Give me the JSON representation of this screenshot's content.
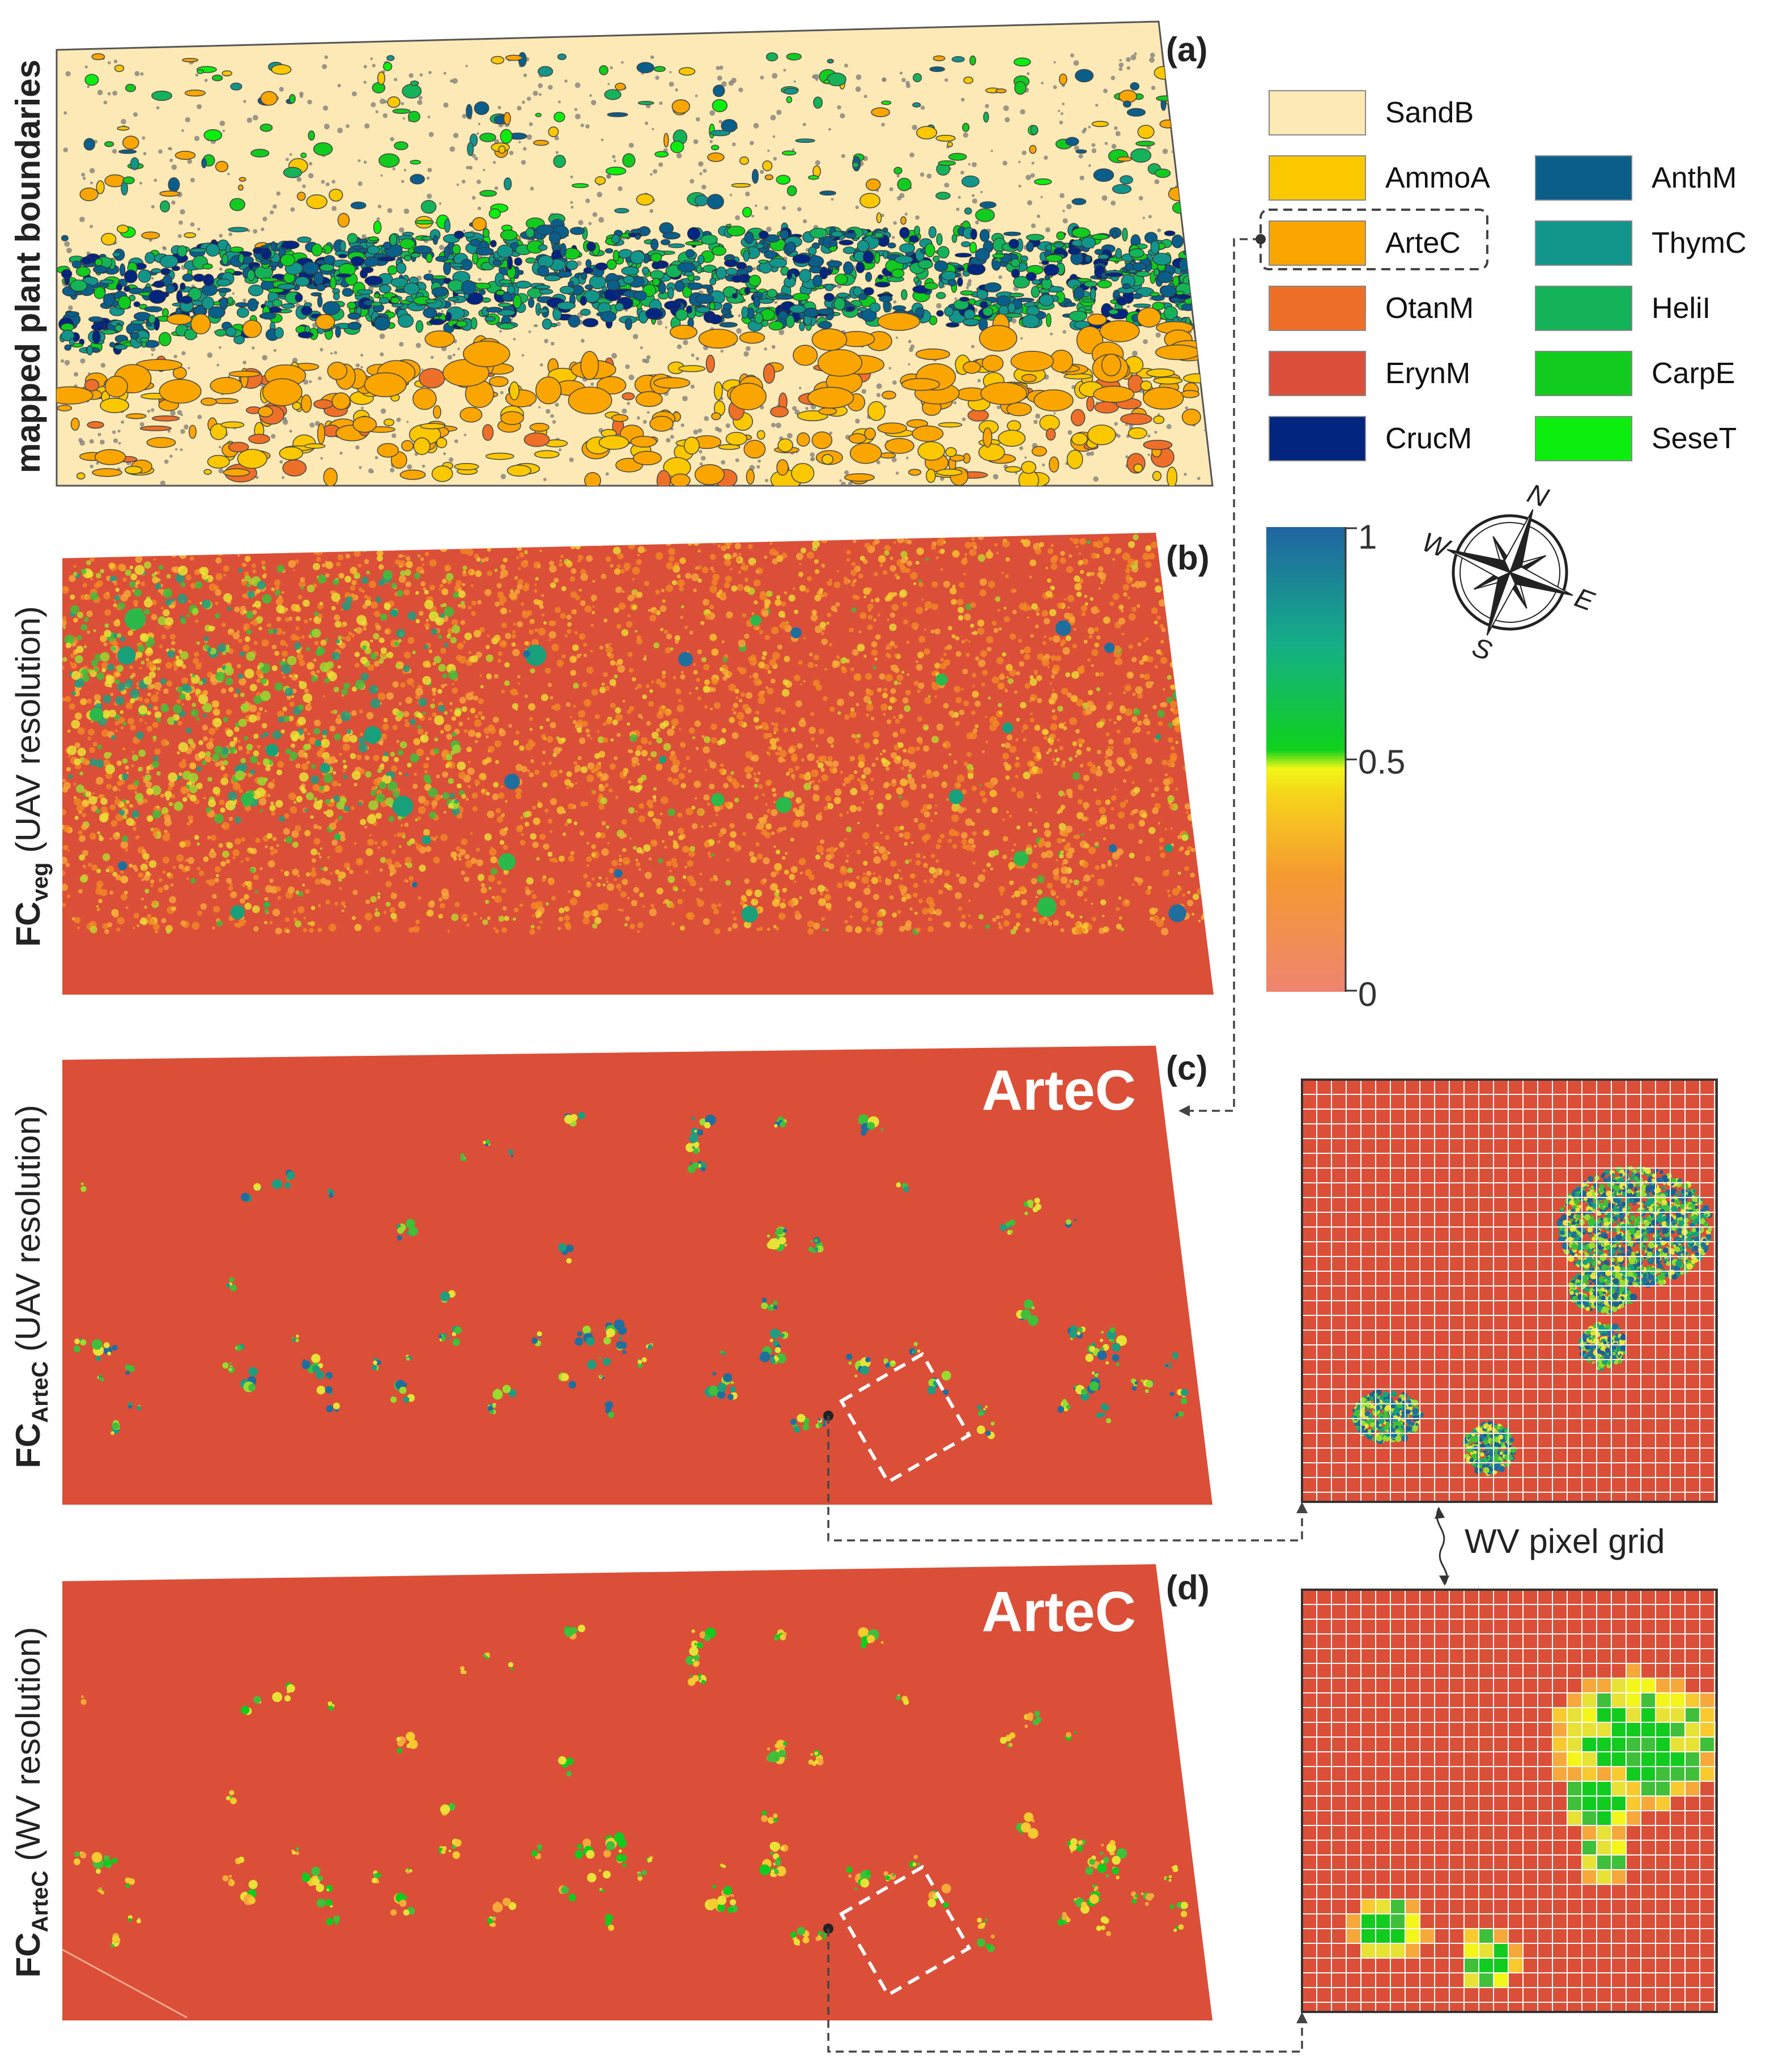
{
  "panels": {
    "a": {
      "letter": "(a)",
      "side_label": "mapped plant boundaries"
    },
    "b": {
      "letter": "(b)",
      "side_label_main": "FC",
      "side_label_sub": "veg",
      "side_label_rest": " (UAV resolution)"
    },
    "c": {
      "letter": "(c)",
      "title": "ArteC",
      "side_label_main": "FC",
      "side_label_sub": "ArteC",
      "side_label_rest": " (UAV resolution)"
    },
    "d": {
      "letter": "(d)",
      "title": "ArteC",
      "side_label_main": "FC",
      "side_label_sub": "ArteC",
      "side_label_rest": " (WV resolution)"
    }
  },
  "legend": {
    "items": [
      {
        "label": "SandB",
        "color": "#FDE9B5"
      },
      {
        "label": "AmmoA",
        "color": "#FBC800"
      },
      {
        "label": "ArteC",
        "color": "#FAA500",
        "highlighted": true
      },
      {
        "label": "OtanM",
        "color": "#EE7028"
      },
      {
        "label": "ErynM",
        "color": "#DC4F3A"
      },
      {
        "label": "CrucM",
        "color": "#022680"
      },
      {
        "label": "AnthM",
        "color": "#0A5E8A"
      },
      {
        "label": "ThymC",
        "color": "#12968B"
      },
      {
        "label": "HeliI",
        "color": "#14B35A"
      },
      {
        "label": "CarpE",
        "color": "#11CC1E"
      },
      {
        "label": "SeseT",
        "color": "#0CEE0E"
      }
    ]
  },
  "colorbar": {
    "ticks": [
      "1",
      "0.5",
      "0"
    ],
    "stops": [
      "#EE8470",
      "#F59A30",
      "#F6D21C",
      "#F3F618",
      "#10D21C",
      "#15AE88",
      "#2064A2"
    ]
  },
  "compass": {
    "N": "N",
    "E": "E",
    "S": "S",
    "W": "W",
    "icon": "compass-rose-icon"
  },
  "grid_label": "WV pixel grid",
  "colors": {
    "background_red": "#DB4E38",
    "sand": "#FDE9B5",
    "frame": "#333333"
  }
}
